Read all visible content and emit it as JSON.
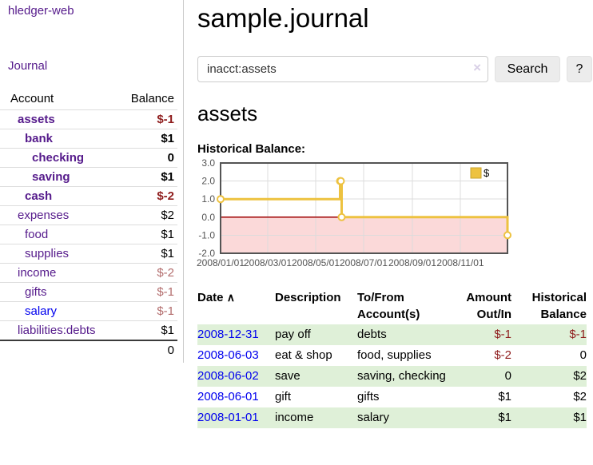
{
  "sidebar": {
    "brand": "hledger-web",
    "journal_link": "Journal",
    "accounts": {
      "headers": {
        "account": "Account",
        "balance": "Balance"
      },
      "rows": [
        {
          "name": "assets",
          "balance": "$-1"
        },
        {
          "name": "bank",
          "balance": "$1"
        },
        {
          "name": "checking",
          "balance": "0"
        },
        {
          "name": "saving",
          "balance": "$1"
        },
        {
          "name": "cash",
          "balance": "$-2"
        },
        {
          "name": "expenses",
          "balance": "$2"
        },
        {
          "name": "food",
          "balance": "$1"
        },
        {
          "name": "supplies",
          "balance": "$1"
        },
        {
          "name": "income",
          "balance": "$-2"
        },
        {
          "name": "gifts",
          "balance": "$-1"
        },
        {
          "name": "salary",
          "balance": "$-1"
        },
        {
          "name": "liabilities:debts",
          "balance": "$1"
        }
      ],
      "total": "0"
    }
  },
  "header": {
    "title": "sample.journal"
  },
  "search": {
    "query": "inacct:assets",
    "clear_icon": "×",
    "search_label": "Search",
    "help_label": "?"
  },
  "account_page": {
    "heading": "assets",
    "chart_label": "Historical Balance:"
  },
  "chart_data": {
    "type": "line",
    "step": true,
    "title": "Historical Balance",
    "xlabel": "",
    "ylabel": "",
    "ylim": [
      -2.0,
      3.0
    ],
    "xlim": [
      "2008/01/01",
      "2008/12/31"
    ],
    "yticks": [
      "3.0",
      "2.0",
      "1.0",
      "0.0",
      "-1.0",
      "-2.0"
    ],
    "ytick_values": [
      3.0,
      2.0,
      1.0,
      0.0,
      -1.0,
      -2.0
    ],
    "xticks": [
      "2008/01/01",
      "2008/03/01",
      "2008/05/01",
      "2008/07/01",
      "2008/09/01",
      "2008/11/01"
    ],
    "grid": true,
    "legend_position": "top-right",
    "series": [
      {
        "name": "$",
        "color": "#edc240",
        "points": [
          [
            "2008/01/01",
            1
          ],
          [
            "2008/06/01",
            2
          ],
          [
            "2008/06/02",
            2
          ],
          [
            "2008/06/03",
            0
          ],
          [
            "2008/12/31",
            -1
          ]
        ]
      }
    ],
    "colors": {
      "negative_region_fill": "#fbd9d9",
      "zero_line": "#9e0000",
      "gridline": "#dcdcdc",
      "border": "#545454",
      "tick_text": "#545454"
    }
  },
  "register": {
    "sort_icon": "∧",
    "headers": {
      "date": "Date",
      "description": "Description",
      "accounts": "To/From Account(s)",
      "amount": "Amount Out/In",
      "balance": "Historical Balance"
    },
    "rows": [
      {
        "date": "2008-12-31",
        "description": "pay off",
        "accounts": "debts",
        "amount": "$-1",
        "balance": "$-1"
      },
      {
        "date": "2008-06-03",
        "description": "eat & shop",
        "accounts": "food, supplies",
        "amount": "$-2",
        "balance": "0"
      },
      {
        "date": "2008-06-02",
        "description": "save",
        "accounts": "saving, checking",
        "amount": "0",
        "balance": "$2"
      },
      {
        "date": "2008-06-01",
        "description": "gift",
        "accounts": "gifts",
        "amount": "$1",
        "balance": "$2"
      },
      {
        "date": "2008-01-01",
        "description": "income",
        "accounts": "salary",
        "amount": "$1",
        "balance": "$1"
      }
    ]
  }
}
